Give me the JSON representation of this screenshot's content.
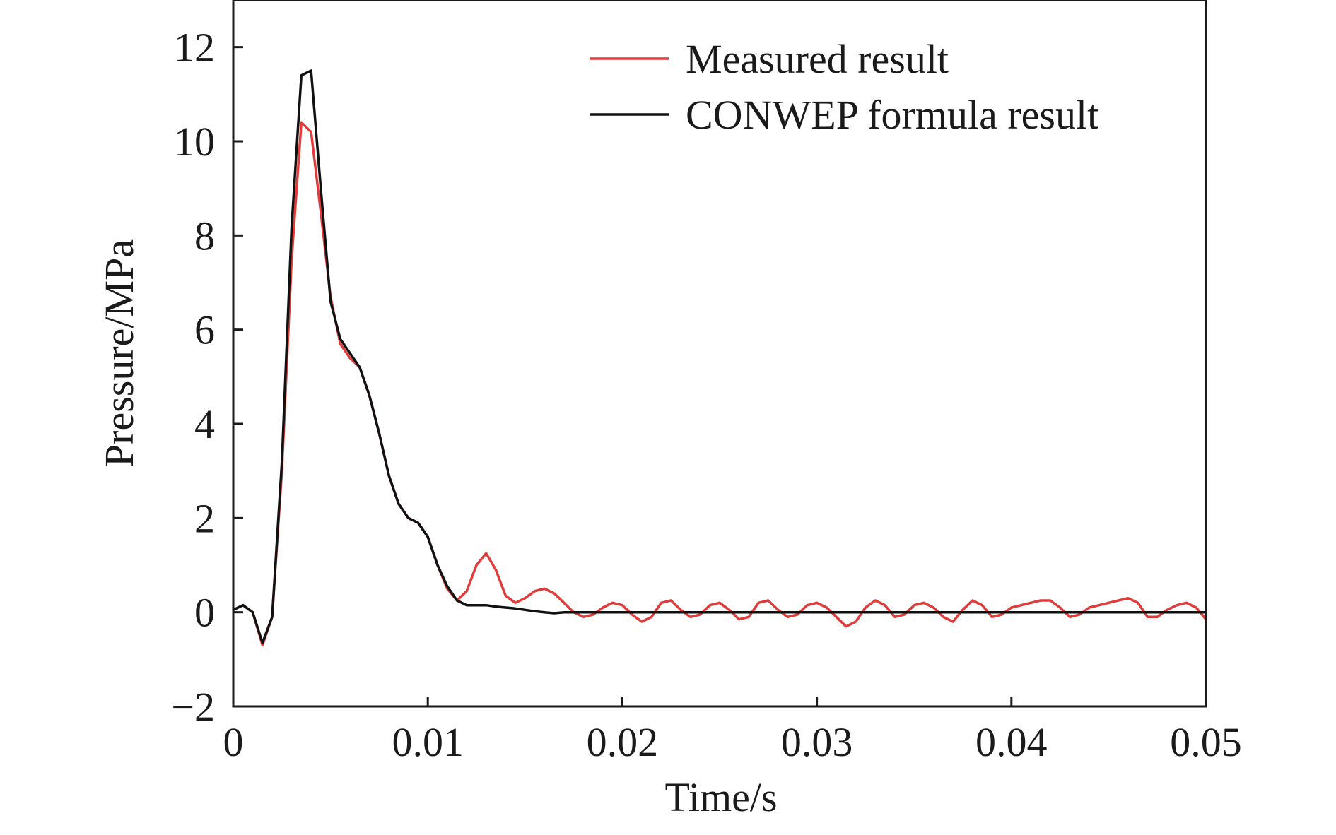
{
  "chart_data": {
    "type": "line",
    "xlabel": "Time/s",
    "ylabel": "Pressure/MPa",
    "xlim": [
      0,
      0.05
    ],
    "ylim": [
      -2,
      13
    ],
    "xticks": [
      0,
      0.01,
      0.02,
      0.03,
      0.04,
      0.05
    ],
    "xtick_labels": [
      "0",
      "0.01",
      "0.02",
      "0.03",
      "0.04",
      "0.05"
    ],
    "yticks": [
      -2,
      0,
      2,
      4,
      6,
      8,
      10,
      12
    ],
    "ytick_labels": [
      "−2",
      "0",
      "2",
      "4",
      "6",
      "8",
      "10",
      "12"
    ],
    "grid": false,
    "legend_position": "top-right",
    "series": [
      {
        "name": "Measured result",
        "color": "#e03c3c",
        "x": [
          0,
          0.0005,
          0.001,
          0.0015,
          0.002,
          0.0025,
          0.003,
          0.0035,
          0.004,
          0.0045,
          0.005,
          0.0055,
          0.006,
          0.0065,
          0.007,
          0.0075,
          0.008,
          0.0085,
          0.009,
          0.0095,
          0.01,
          0.0105,
          0.011,
          0.0115,
          0.012,
          0.0125,
          0.013,
          0.0135,
          0.014,
          0.0145,
          0.015,
          0.0155,
          0.016,
          0.0165,
          0.017,
          0.0175,
          0.018,
          0.0185,
          0.019,
          0.0195,
          0.02,
          0.0205,
          0.021,
          0.0215,
          0.022,
          0.0225,
          0.023,
          0.0235,
          0.024,
          0.0245,
          0.025,
          0.0255,
          0.026,
          0.0265,
          0.027,
          0.0275,
          0.028,
          0.0285,
          0.029,
          0.0295,
          0.03,
          0.0305,
          0.031,
          0.0315,
          0.032,
          0.0325,
          0.033,
          0.0335,
          0.034,
          0.0345,
          0.035,
          0.0355,
          0.036,
          0.0365,
          0.037,
          0.0375,
          0.038,
          0.0385,
          0.039,
          0.0395,
          0.04,
          0.0405,
          0.041,
          0.0415,
          0.042,
          0.0425,
          0.043,
          0.0435,
          0.044,
          0.0445,
          0.045,
          0.0455,
          0.046,
          0.0465,
          0.047,
          0.0475,
          0.048,
          0.0485,
          0.049,
          0.0495,
          0.05
        ],
        "y": [
          0.05,
          0.15,
          0.0,
          -0.7,
          -0.1,
          3.0,
          7.5,
          10.4,
          10.2,
          8.5,
          6.7,
          5.7,
          5.4,
          5.2,
          4.6,
          3.8,
          2.9,
          2.3,
          2.0,
          1.9,
          1.6,
          1.0,
          0.5,
          0.25,
          0.45,
          1.0,
          1.25,
          0.9,
          0.35,
          0.2,
          0.3,
          0.45,
          0.5,
          0.4,
          0.2,
          0.0,
          -0.1,
          -0.05,
          0.1,
          0.2,
          0.15,
          -0.05,
          -0.2,
          -0.1,
          0.2,
          0.25,
          0.05,
          -0.1,
          -0.05,
          0.15,
          0.2,
          0.05,
          -0.15,
          -0.1,
          0.2,
          0.25,
          0.05,
          -0.1,
          -0.05,
          0.15,
          0.2,
          0.1,
          -0.1,
          -0.3,
          -0.2,
          0.1,
          0.25,
          0.15,
          -0.1,
          -0.05,
          0.15,
          0.2,
          0.1,
          -0.1,
          -0.2,
          0.05,
          0.25,
          0.15,
          -0.1,
          -0.05,
          0.1,
          0.15,
          0.2,
          0.25,
          0.25,
          0.1,
          -0.1,
          -0.05,
          0.1,
          0.15,
          0.2,
          0.25,
          0.3,
          0.2,
          -0.1,
          -0.1,
          0.05,
          0.15,
          0.2,
          0.1,
          -0.15
        ]
      },
      {
        "name": "CONWEP formula result",
        "color": "#111111",
        "x": [
          0,
          0.0005,
          0.001,
          0.0015,
          0.002,
          0.0025,
          0.003,
          0.0035,
          0.004,
          0.0045,
          0.005,
          0.0055,
          0.006,
          0.0065,
          0.007,
          0.0075,
          0.008,
          0.0085,
          0.009,
          0.0095,
          0.01,
          0.0105,
          0.011,
          0.0115,
          0.012,
          0.0125,
          0.013,
          0.0135,
          0.014,
          0.0145,
          0.015,
          0.0155,
          0.016,
          0.0165,
          0.017,
          0.0175,
          0.018,
          0.019,
          0.02,
          0.025,
          0.03,
          0.035,
          0.04,
          0.045,
          0.05
        ],
        "y": [
          0.05,
          0.15,
          0.0,
          -0.65,
          -0.1,
          3.2,
          8.2,
          11.4,
          11.5,
          9.0,
          6.6,
          5.8,
          5.5,
          5.2,
          4.6,
          3.8,
          2.9,
          2.3,
          2.0,
          1.9,
          1.6,
          1.0,
          0.55,
          0.25,
          0.15,
          0.15,
          0.15,
          0.12,
          0.1,
          0.08,
          0.05,
          0.02,
          0.0,
          -0.02,
          0.0,
          0.0,
          0.0,
          0.0,
          0.0,
          0.0,
          0.0,
          0.0,
          0.0,
          0.0,
          0.0
        ]
      }
    ]
  }
}
